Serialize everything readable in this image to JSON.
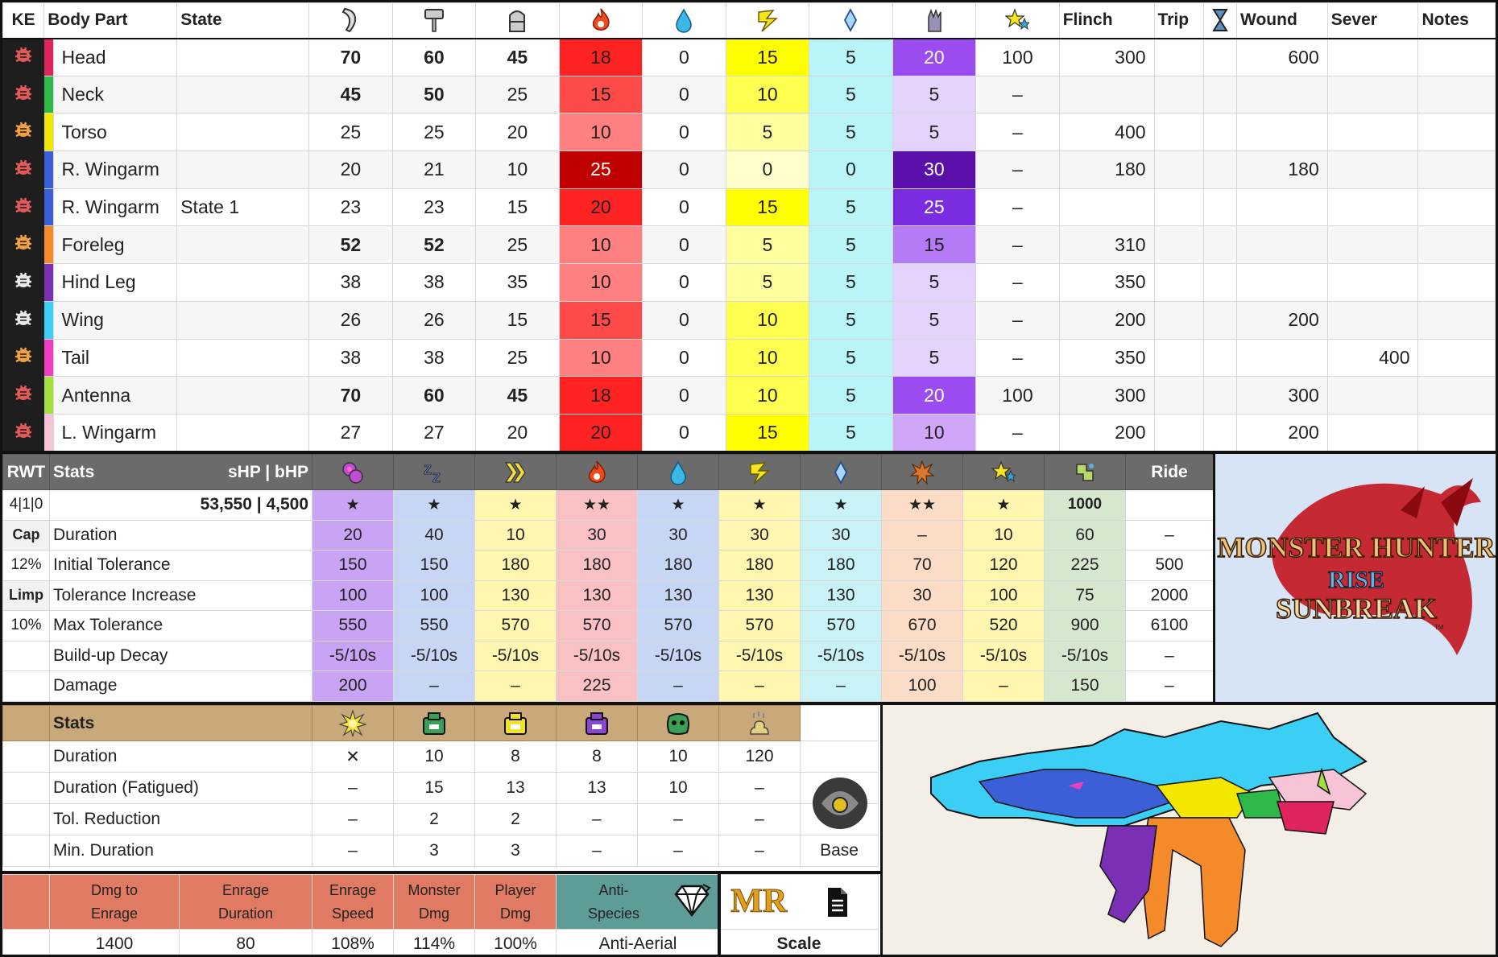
{
  "weakness": {
    "headers": {
      "ke": "KE",
      "part": "Body Part",
      "state": "State",
      "flinch": "Flinch",
      "trip": "Trip",
      "wound": "Wound",
      "sever": "Sever",
      "notes": "Notes"
    },
    "header_icons": [
      "sever-icon",
      "blunt-icon",
      "shot-icon",
      "fire-icon",
      "water-icon",
      "thunder-icon",
      "ice-icon",
      "dragon-icon",
      "stun-icon",
      "hourglass-icon"
    ],
    "rows": [
      {
        "part": "Head",
        "state": "",
        "sever": "70",
        "blunt": "60",
        "shot": "45",
        "fire": "18",
        "water": "0",
        "thunder": "15",
        "ice": "5",
        "dragon": "20",
        "stun": "100",
        "flinch": "300",
        "trip": "",
        "wound": "600",
        "sev": "",
        "notes": "",
        "color": "#e0245e",
        "ke": "red"
      },
      {
        "part": "Neck",
        "state": "",
        "sever": "45",
        "blunt": "50",
        "shot": "25",
        "fire": "15",
        "water": "0",
        "thunder": "10",
        "ice": "5",
        "dragon": "5",
        "stun": "–",
        "flinch": "",
        "trip": "",
        "wound": "",
        "sev": "",
        "notes": "",
        "color": "#2fb84a",
        "ke": "red"
      },
      {
        "part": "Torso",
        "state": "",
        "sever": "25",
        "blunt": "25",
        "shot": "20",
        "fire": "10",
        "water": "0",
        "thunder": "5",
        "ice": "5",
        "dragon": "5",
        "stun": "–",
        "flinch": "400",
        "trip": "",
        "wound": "",
        "sev": "",
        "notes": "",
        "color": "#f3e700",
        "ke": "orange"
      },
      {
        "part": "R. Wingarm",
        "state": "",
        "sever": "20",
        "blunt": "21",
        "shot": "10",
        "fire": "25",
        "water": "0",
        "thunder": "0",
        "ice": "0",
        "dragon": "30",
        "stun": "–",
        "flinch": "180",
        "trip": "",
        "wound": "180",
        "sev": "",
        "notes": "",
        "color": "#3b5fd6",
        "ke": "red"
      },
      {
        "part": "R. Wingarm",
        "state": "State 1",
        "sever": "23",
        "blunt": "23",
        "shot": "15",
        "fire": "20",
        "water": "0",
        "thunder": "15",
        "ice": "5",
        "dragon": "25",
        "stun": "–",
        "flinch": "",
        "trip": "",
        "wound": "",
        "sev": "",
        "notes": "",
        "color": "#3b5fd6",
        "ke": "red"
      },
      {
        "part": "Foreleg",
        "state": "",
        "sever": "52",
        "blunt": "52",
        "shot": "25",
        "fire": "10",
        "water": "0",
        "thunder": "5",
        "ice": "5",
        "dragon": "15",
        "stun": "–",
        "flinch": "310",
        "trip": "",
        "wound": "",
        "sev": "",
        "notes": "",
        "color": "#f58a2a",
        "ke": "orange"
      },
      {
        "part": "Hind Leg",
        "state": "",
        "sever": "38",
        "blunt": "38",
        "shot": "35",
        "fire": "10",
        "water": "0",
        "thunder": "5",
        "ice": "5",
        "dragon": "5",
        "stun": "–",
        "flinch": "350",
        "trip": "",
        "wound": "",
        "sev": "",
        "notes": "",
        "color": "#7a2fb5",
        "ke": "white"
      },
      {
        "part": "Wing",
        "state": "",
        "sever": "26",
        "blunt": "26",
        "shot": "15",
        "fire": "15",
        "water": "0",
        "thunder": "10",
        "ice": "5",
        "dragon": "5",
        "stun": "–",
        "flinch": "200",
        "trip": "",
        "wound": "200",
        "sev": "",
        "notes": "",
        "color": "#3ccff5",
        "ke": "white"
      },
      {
        "part": "Tail",
        "state": "",
        "sever": "38",
        "blunt": "38",
        "shot": "25",
        "fire": "10",
        "water": "0",
        "thunder": "10",
        "ice": "5",
        "dragon": "5",
        "stun": "–",
        "flinch": "350",
        "trip": "",
        "wound": "",
        "sev": "400",
        "notes": "",
        "color": "#f03cbe",
        "ke": "orange"
      },
      {
        "part": "Antenna",
        "state": "",
        "sever": "70",
        "blunt": "60",
        "shot": "45",
        "fire": "18",
        "water": "0",
        "thunder": "10",
        "ice": "5",
        "dragon": "20",
        "stun": "100",
        "flinch": "300",
        "trip": "",
        "wound": "300",
        "sev": "",
        "notes": "",
        "color": "#a7e03c",
        "ke": "red"
      },
      {
        "part": "L. Wingarm",
        "state": "",
        "sever": "27",
        "blunt": "27",
        "shot": "20",
        "fire": "20",
        "water": "0",
        "thunder": "15",
        "ice": "5",
        "dragon": "10",
        "stun": "–",
        "flinch": "200",
        "trip": "",
        "wound": "200",
        "sev": "",
        "notes": "",
        "color": "#f7c3d6",
        "ke": "red"
      }
    ]
  },
  "ailments": {
    "header": {
      "rwt": "RWT",
      "stats": "Stats",
      "hp": "sHP  |  bHP",
      "ride": "Ride"
    },
    "icons": [
      "poison-icon",
      "sleep-icon",
      "paralysis-icon",
      "fireblight-icon",
      "waterblight-icon",
      "thunderblight-icon",
      "iceblight-icon",
      "blast-icon",
      "stun-icon",
      "exhaust-icon"
    ],
    "side": [
      "4|1|0",
      "Cap",
      "12%",
      "Limp",
      "10%",
      "",
      ""
    ],
    "hp_value": "53,550  |  4,500",
    "stars": [
      "★",
      "★",
      "★",
      "★★",
      "★",
      "★",
      "★",
      "★★",
      "★",
      "1000",
      ""
    ],
    "rows": [
      {
        "label": "Duration",
        "vals": [
          "20",
          "40",
          "10",
          "30",
          "30",
          "30",
          "30",
          "–",
          "10",
          "60",
          "–"
        ]
      },
      {
        "label": "Initial Tolerance",
        "vals": [
          "150",
          "150",
          "180",
          "180",
          "180",
          "180",
          "180",
          "70",
          "120",
          "225",
          "500"
        ]
      },
      {
        "label": "Tolerance Increase",
        "vals": [
          "100",
          "100",
          "130",
          "130",
          "130",
          "130",
          "130",
          "30",
          "100",
          "75",
          "2000"
        ]
      },
      {
        "label": "Max Tolerance",
        "vals": [
          "550",
          "550",
          "570",
          "570",
          "570",
          "570",
          "570",
          "670",
          "520",
          "900",
          "6100"
        ]
      },
      {
        "label": "Build-up Decay",
        "vals": [
          "-5/10s",
          "-5/10s",
          "-5/10s",
          "-5/10s",
          "-5/10s",
          "-5/10s",
          "-5/10s",
          "-5/10s",
          "-5/10s",
          "-5/10s",
          "–"
        ]
      },
      {
        "label": "Damage",
        "vals": [
          "200",
          "–",
          "–",
          "225",
          "–",
          "–",
          "–",
          "100",
          "–",
          "150",
          "–"
        ]
      }
    ]
  },
  "status": {
    "header": "Stats",
    "icons": [
      "flash-icon",
      "shock-trap-icon",
      "pitfall-trap-icon",
      "pitfall-trap-purple-icon",
      "tranq-icon",
      "dung-icon"
    ],
    "rows": [
      {
        "label": "Duration",
        "vals": [
          "✕",
          "10",
          "8",
          "8",
          "10",
          "120"
        ]
      },
      {
        "label": "Duration (Fatigued)",
        "vals": [
          "–",
          "15",
          "13",
          "13",
          "10",
          "–"
        ]
      },
      {
        "label": "Tol. Reduction",
        "vals": [
          "–",
          "2",
          "2",
          "–",
          "–",
          "–"
        ]
      },
      {
        "label": "Min. Duration",
        "vals": [
          "–",
          "3",
          "3",
          "–",
          "–",
          "–"
        ]
      }
    ],
    "base_label": "Base"
  },
  "enrage": {
    "h": [
      "Dmg to\nEnrage",
      "Enrage\nDuration",
      "Enrage\nSpeed",
      "Monster\nDmg",
      "Player\nDmg"
    ],
    "v": [
      "1400",
      "80",
      "108%",
      "114%",
      "100%"
    ],
    "anti_label": "Anti-\nSpecies",
    "anti_value": "Anti-Aerial",
    "mr": "MR",
    "scale": "Scale"
  },
  "logo": {
    "line1": "MONSTER HUNTER",
    "line2": "RISE",
    "line3": "SUNBREAK",
    "tm": "TM"
  }
}
